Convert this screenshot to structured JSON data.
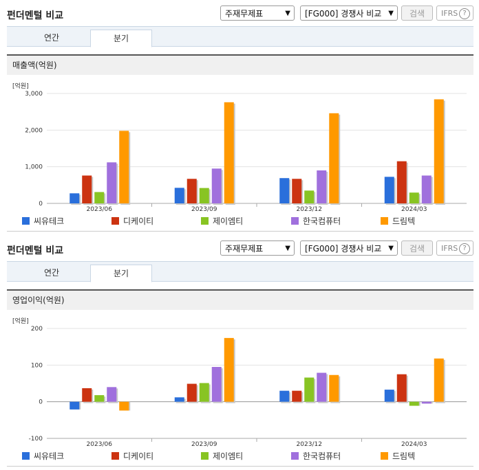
{
  "sections": [
    {
      "title": "펀더멘털 비교",
      "select_statement": "주재무제표",
      "select_peer": "[FG000] 경쟁사 비교",
      "search_label": "검색",
      "ifrs_label": "IFRS",
      "help_glyph": "?",
      "tabs": [
        {
          "label": "연간"
        },
        {
          "label": "분기"
        }
      ],
      "active_tab": "분기",
      "chart_title": "매출액(억원)",
      "unit_label": "[억원]"
    },
    {
      "title": "펀더멘털 비교",
      "select_statement": "주재무제표",
      "select_peer": "[FG000] 경쟁사 비교",
      "search_label": "검색",
      "ifrs_label": "IFRS",
      "help_glyph": "?",
      "tabs": [
        {
          "label": "연간"
        },
        {
          "label": "분기"
        }
      ],
      "active_tab": "분기",
      "chart_title": "영업이익(억원)",
      "unit_label": "[억원]"
    }
  ],
  "legend": [
    {
      "name": "씨유테크",
      "color": "#2a6fdb"
    },
    {
      "name": "디케이티",
      "color": "#cc3311"
    },
    {
      "name": "제이엠티",
      "color": "#88c423"
    },
    {
      "name": "한국컴퓨터",
      "color": "#a070dd"
    },
    {
      "name": "드림텍",
      "color": "#ff9900"
    }
  ],
  "chart_data": [
    {
      "type": "bar",
      "title": "매출액(억원)",
      "ylabel": "[억원]",
      "categories": [
        "2023/06",
        "2023/09",
        "2023/12",
        "2024/03"
      ],
      "ylim": [
        0,
        3000
      ],
      "yticks": [
        0,
        1000,
        2000,
        3000
      ],
      "ytick_labels": [
        "0",
        "1,000",
        "2,000",
        "3,000"
      ],
      "series": [
        {
          "name": "씨유테크",
          "values": [
            275,
            425,
            690,
            725
          ]
        },
        {
          "name": "디케이티",
          "values": [
            760,
            670,
            670,
            1150
          ]
        },
        {
          "name": "제이엠티",
          "values": [
            310,
            420,
            350,
            295
          ]
        },
        {
          "name": "한국컴퓨터",
          "values": [
            1120,
            950,
            900,
            760
          ]
        },
        {
          "name": "드림텍",
          "values": [
            1980,
            2760,
            2460,
            2840
          ]
        }
      ],
      "grid": true
    },
    {
      "type": "bar",
      "title": "영업이익(억원)",
      "ylabel": "[억원]",
      "categories": [
        "2023/06",
        "2023/09",
        "2023/12",
        "2024/03"
      ],
      "ylim": [
        -100,
        200
      ],
      "yticks": [
        -100,
        0,
        100,
        200
      ],
      "ytick_labels": [
        "-100",
        "0",
        "100",
        "200"
      ],
      "series": [
        {
          "name": "씨유테크",
          "values": [
            -21,
            12,
            30,
            33
          ]
        },
        {
          "name": "디케이티",
          "values": [
            37,
            49,
            30,
            75
          ]
        },
        {
          "name": "제이엠티",
          "values": [
            18,
            51,
            66,
            -11
          ]
        },
        {
          "name": "한국컴퓨터",
          "values": [
            40,
            95,
            79,
            -5
          ]
        },
        {
          "name": "드림텍",
          "values": [
            -24,
            174,
            73,
            118
          ]
        }
      ],
      "grid": true
    }
  ]
}
